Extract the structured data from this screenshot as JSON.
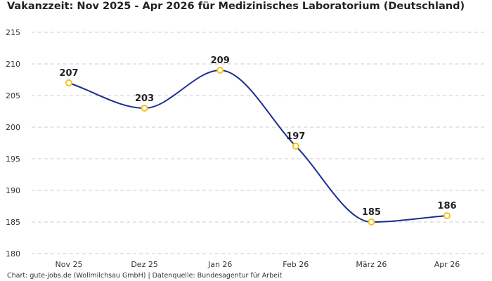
{
  "chart_data": {
    "type": "line",
    "title": "Vakanzzeit: Nov 2025 - Apr 2026 für Medizinisches Laboratorium (Deutschland)",
    "categories": [
      "Nov 25",
      "Dez 25",
      "Jan 26",
      "Feb 26",
      "März 26",
      "Apr 26"
    ],
    "series": [
      {
        "values": [
          207,
          203,
          209,
          197,
          185,
          186
        ]
      }
    ],
    "ylim": [
      180,
      215
    ],
    "yticks": [
      180,
      185,
      190,
      195,
      200,
      205,
      210,
      215
    ],
    "xlabel": "",
    "ylabel": "",
    "grid": true,
    "line_color": "#1b2f8f",
    "marker_color": "#f2c418"
  },
  "footer": "Chart: gute-jobs.de (Wollmilchsau GmbH) | Datenquelle: Bundesagentur für Arbeit"
}
